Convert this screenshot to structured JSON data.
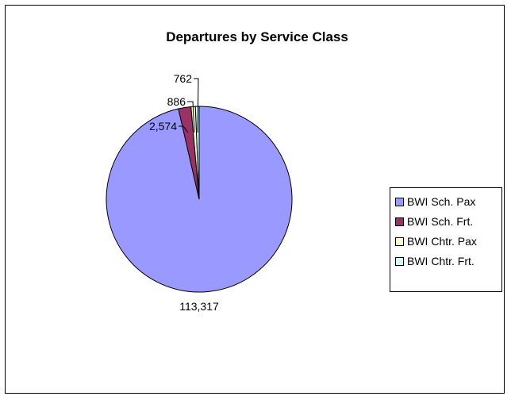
{
  "chart_data": {
    "type": "pie",
    "title": "Departures by Service Class",
    "categories": [
      "BWI Sch. Pax",
      "BWI Sch. Frt.",
      "BWI Chtr. Pax",
      "BWI Chtr. Frt."
    ],
    "values": [
      113317,
      2574,
      886,
      762
    ],
    "data_labels": [
      "113,317",
      "2,574",
      "886",
      "762"
    ],
    "colors": [
      "#9999ff",
      "#993366",
      "#ffffcc",
      "#ccffff"
    ],
    "legend_position": "right"
  }
}
